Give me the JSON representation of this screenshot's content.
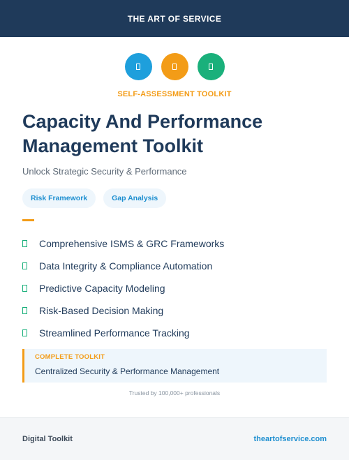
{
  "banner": {
    "text": "THE ART OF SERVICE"
  },
  "header_icons": [
    {
      "name": "placeholder-glyph-icon",
      "color": "#1e9fdc"
    },
    {
      "name": "placeholder-glyph-icon",
      "color": "#f39c17"
    },
    {
      "name": "placeholder-glyph-icon",
      "color": "#1ab07b"
    }
  ],
  "eyebrow": "SELF-ASSESSMENT TOOLKIT",
  "title": "Capacity And Performance Management Toolkit",
  "subtitle": "Unlock Strategic Security & Performance",
  "tags": [
    "Risk Framework",
    "Gap Analysis"
  ],
  "features": [
    "Comprehensive ISMS & GRC Frameworks",
    "Data Integrity & Compliance Automation",
    "Predictive Capacity Modeling",
    "Risk-Based Decision Making",
    "Streamlined Performance Tracking"
  ],
  "callout": {
    "label": "COMPLETE TOOLKIT",
    "text": "Centralized Security & Performance Management"
  },
  "trusted": "Trusted by 100,000+ professionals",
  "footer": {
    "left": "Digital Toolkit",
    "right": "theartofservice.com"
  },
  "colors": {
    "navy": "#1f3a5a",
    "orange": "#f39c17",
    "blue": "#1e9fdc",
    "green": "#1ab07b"
  }
}
